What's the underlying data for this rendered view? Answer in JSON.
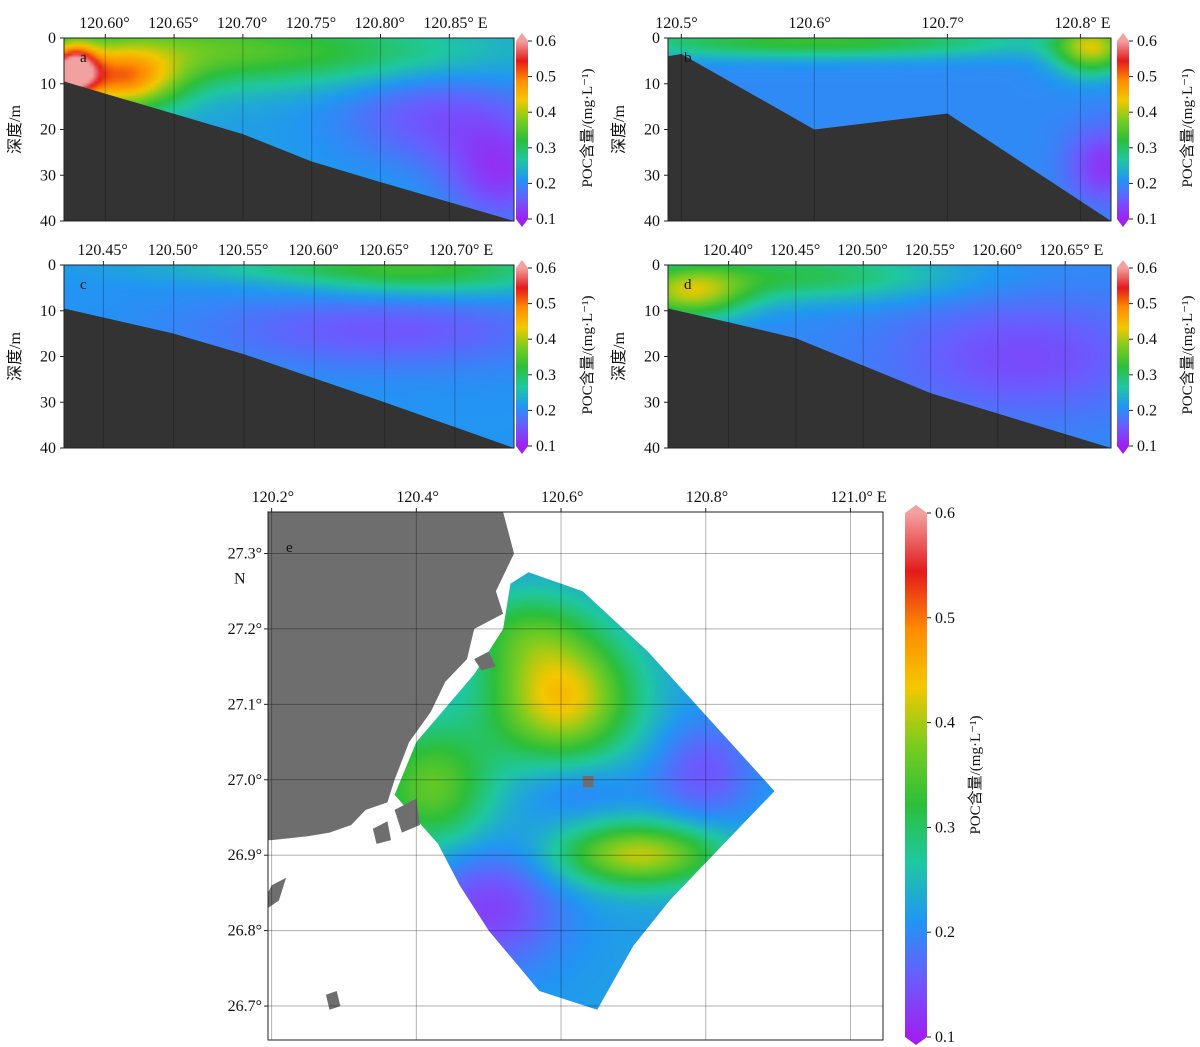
{
  "colorbar": {
    "label": "POC含量/(mg·L⁻¹)",
    "ticks": [
      0.6,
      0.5,
      0.4,
      0.3,
      0.2,
      0.1
    ],
    "range": [
      0.1,
      0.6
    ],
    "colormap": [
      "#a020f0",
      "#6a5cff",
      "#2196f3",
      "#1fc8a0",
      "#2cbf3a",
      "#7acc20",
      "#f3c800",
      "#ff8c00",
      "#e41a1c",
      "#f2a0a0"
    ]
  },
  "chart_data": [
    {
      "id": "a",
      "type": "heatmap",
      "panel_label": "a",
      "x_ticks": [
        "120.60°",
        "120.65°",
        "120.70°",
        "120.75°",
        "120.80°",
        "120.85° E"
      ],
      "x_values": [
        120.6,
        120.65,
        120.7,
        120.75,
        120.8,
        120.85
      ],
      "xlim": [
        120.57,
        120.897
      ],
      "ylabel": "深度/m",
      "y_ticks": [
        "0",
        "10",
        "20",
        "30",
        "40"
      ],
      "ylim": [
        0,
        40
      ],
      "bathymetry": [
        [
          120.57,
          9.5
        ],
        [
          120.7,
          21
        ],
        [
          120.75,
          27
        ],
        [
          120.8,
          31.5
        ],
        [
          120.897,
          40
        ]
      ],
      "blobs": [
        {
          "x": 120.575,
          "y": 7,
          "v": 0.55,
          "sx": 0.012,
          "sy": 4
        },
        {
          "x": 120.61,
          "y": 9,
          "v": 0.45,
          "sx": 0.03,
          "sy": 5
        },
        {
          "x": 120.65,
          "y": 2,
          "v": 0.33,
          "sx": 0.07,
          "sy": 6
        },
        {
          "x": 120.78,
          "y": 3,
          "v": 0.3,
          "sx": 0.08,
          "sy": 5
        },
        {
          "x": 120.84,
          "y": 17,
          "v": 0.15,
          "sx": 0.05,
          "sy": 8
        },
        {
          "x": 120.89,
          "y": 30,
          "v": 0.13,
          "sx": 0.03,
          "sy": 8
        }
      ],
      "base_value": 0.22
    },
    {
      "id": "b",
      "type": "heatmap",
      "panel_label": "b",
      "x_ticks": [
        "120.5°",
        "120.6°",
        "120.7°",
        "120.8° E"
      ],
      "x_values": [
        120.5,
        120.6,
        120.7,
        120.8
      ],
      "xlim": [
        120.49,
        120.823
      ],
      "ylabel": "深度/m",
      "y_ticks": [
        "0",
        "10",
        "20",
        "30",
        "40"
      ],
      "ylim": [
        0,
        40
      ],
      "bathymetry": [
        [
          120.49,
          4
        ],
        [
          120.5,
          3.5
        ],
        [
          120.6,
          20
        ],
        [
          120.7,
          16.5
        ],
        [
          120.823,
          40
        ]
      ],
      "blobs": [
        {
          "x": 120.6,
          "y": 0.5,
          "v": 0.33,
          "sx": 0.12,
          "sy": 2.5
        },
        {
          "x": 120.81,
          "y": 2,
          "v": 0.4,
          "sx": 0.02,
          "sy": 4
        },
        {
          "x": 120.82,
          "y": 28,
          "v": 0.12,
          "sx": 0.02,
          "sy": 6
        }
      ],
      "base_value": 0.2
    },
    {
      "id": "c",
      "type": "heatmap",
      "panel_label": "c",
      "x_ticks": [
        "120.45°",
        "120.50°",
        "120.55°",
        "120.60°",
        "120.65°",
        "120.70° E"
      ],
      "x_values": [
        120.45,
        120.5,
        120.55,
        120.6,
        120.65,
        120.7
      ],
      "xlim": [
        120.422,
        120.742
      ],
      "ylabel": "深度/m",
      "y_ticks": [
        "0",
        "10",
        "20",
        "30",
        "40"
      ],
      "ylim": [
        0,
        40
      ],
      "bathymetry": [
        [
          120.422,
          9.5
        ],
        [
          120.5,
          15
        ],
        [
          120.55,
          19.5
        ],
        [
          120.65,
          30
        ],
        [
          120.742,
          40
        ]
      ],
      "blobs": [
        {
          "x": 120.68,
          "y": 1,
          "v": 0.32,
          "sx": 0.07,
          "sy": 4
        },
        {
          "x": 120.58,
          "y": 0.5,
          "v": 0.25,
          "sx": 0.08,
          "sy": 2
        },
        {
          "x": 120.65,
          "y": 14,
          "v": 0.15,
          "sx": 0.09,
          "sy": 6
        }
      ],
      "base_value": 0.21
    },
    {
      "id": "d",
      "type": "heatmap",
      "panel_label": "d",
      "x_ticks": [
        "120.40°",
        "120.45°",
        "120.50°",
        "120.55°",
        "120.60°",
        "120.65° E"
      ],
      "x_values": [
        120.4,
        120.45,
        120.5,
        120.55,
        120.6,
        120.65
      ],
      "xlim": [
        120.355,
        120.684
      ],
      "ylabel": "深度/m",
      "y_ticks": [
        "0",
        "10",
        "20",
        "30",
        "40"
      ],
      "ylim": [
        0,
        40
      ],
      "bathymetry": [
        [
          120.355,
          9.5
        ],
        [
          120.4,
          12.5
        ],
        [
          120.45,
          16
        ],
        [
          120.55,
          28
        ],
        [
          120.684,
          40
        ]
      ],
      "blobs": [
        {
          "x": 120.37,
          "y": 6,
          "v": 0.38,
          "sx": 0.03,
          "sy": 4
        },
        {
          "x": 120.45,
          "y": 2,
          "v": 0.31,
          "sx": 0.08,
          "sy": 4
        },
        {
          "x": 120.62,
          "y": 20,
          "v": 0.14,
          "sx": 0.07,
          "sy": 9
        }
      ],
      "base_value": 0.2
    },
    {
      "id": "e",
      "type": "heatmap",
      "panel_label": "e",
      "x_ticks": [
        "120.2°",
        "120.4°",
        "120.6°",
        "120.8°",
        "121.0° E"
      ],
      "x_values": [
        120.2,
        120.4,
        120.6,
        120.8,
        121.0
      ],
      "xlim": [
        120.195,
        121.045
      ],
      "y_ticks": [
        "27.3°",
        "27.2°",
        "27.1°",
        "27.0°",
        "26.9°",
        "26.8°",
        "26.7°"
      ],
      "y_values": [
        27.3,
        27.2,
        27.1,
        27.0,
        26.9,
        26.8,
        26.7
      ],
      "ylim": [
        26.655,
        27.355
      ],
      "y_unit": "N",
      "domain_polygon": [
        [
          120.555,
          27.275
        ],
        [
          120.63,
          27.25
        ],
        [
          120.72,
          27.17
        ],
        [
          120.81,
          27.075
        ],
        [
          120.895,
          26.985
        ],
        [
          120.85,
          26.94
        ],
        [
          120.75,
          26.84
        ],
        [
          120.7,
          26.78
        ],
        [
          120.65,
          26.695
        ],
        [
          120.57,
          26.72
        ],
        [
          120.5,
          26.8
        ],
        [
          120.46,
          26.86
        ],
        [
          120.43,
          26.915
        ],
        [
          120.37,
          26.98
        ],
        [
          120.4,
          27.05
        ],
        [
          120.48,
          27.14
        ],
        [
          120.52,
          27.2
        ],
        [
          120.53,
          27.26
        ]
      ],
      "blobs": [
        {
          "x": 120.6,
          "y": 27.11,
          "v": 0.44,
          "sx": 0.07,
          "sy": 0.06
        },
        {
          "x": 120.71,
          "y": 26.9,
          "v": 0.41,
          "sx": 0.08,
          "sy": 0.03
        },
        {
          "x": 120.42,
          "y": 26.99,
          "v": 0.36,
          "sx": 0.06,
          "sy": 0.06
        },
        {
          "x": 120.55,
          "y": 27.2,
          "v": 0.3,
          "sx": 0.06,
          "sy": 0.04
        },
        {
          "x": 120.5,
          "y": 26.83,
          "v": 0.13,
          "sx": 0.07,
          "sy": 0.06
        },
        {
          "x": 120.8,
          "y": 27.01,
          "v": 0.15,
          "sx": 0.05,
          "sy": 0.05
        },
        {
          "x": 120.62,
          "y": 26.99,
          "v": 0.18,
          "sx": 0.06,
          "sy": 0.03
        }
      ],
      "base_value": 0.22,
      "land": [
        [
          [
            120.195,
            27.355
          ],
          [
            120.52,
            27.355
          ],
          [
            120.535,
            27.3
          ],
          [
            120.51,
            27.25
          ],
          [
            120.52,
            27.22
          ],
          [
            120.48,
            27.2
          ],
          [
            120.47,
            27.16
          ],
          [
            120.44,
            27.13
          ],
          [
            120.42,
            27.09
          ],
          [
            120.39,
            27.05
          ],
          [
            120.37,
            27.0
          ],
          [
            120.36,
            26.97
          ],
          [
            120.33,
            26.96
          ],
          [
            120.31,
            26.94
          ],
          [
            120.28,
            26.93
          ],
          [
            120.25,
            26.925
          ],
          [
            120.2,
            26.92
          ],
          [
            120.195,
            26.92
          ]
        ],
        [
          [
            120.195,
            26.85
          ],
          [
            120.2,
            26.86
          ],
          [
            120.22,
            26.87
          ],
          [
            120.21,
            26.84
          ],
          [
            120.195,
            26.83
          ]
        ],
        [
          [
            120.37,
            26.96
          ],
          [
            120.4,
            26.975
          ],
          [
            120.405,
            26.94
          ],
          [
            120.38,
            26.93
          ]
        ],
        [
          [
            120.34,
            26.935
          ],
          [
            120.36,
            26.945
          ],
          [
            120.365,
            26.92
          ],
          [
            120.345,
            26.915
          ]
        ],
        [
          [
            120.48,
            27.16
          ],
          [
            120.5,
            27.17
          ],
          [
            120.51,
            27.15
          ],
          [
            120.49,
            27.145
          ]
        ],
        [
          [
            120.63,
            27.005
          ],
          [
            120.645,
            27.005
          ],
          [
            120.645,
            26.99
          ],
          [
            120.63,
            26.99
          ]
        ],
        [
          [
            120.275,
            26.715
          ],
          [
            120.29,
            26.72
          ],
          [
            120.295,
            26.7
          ],
          [
            120.28,
            26.695
          ]
        ]
      ]
    }
  ]
}
